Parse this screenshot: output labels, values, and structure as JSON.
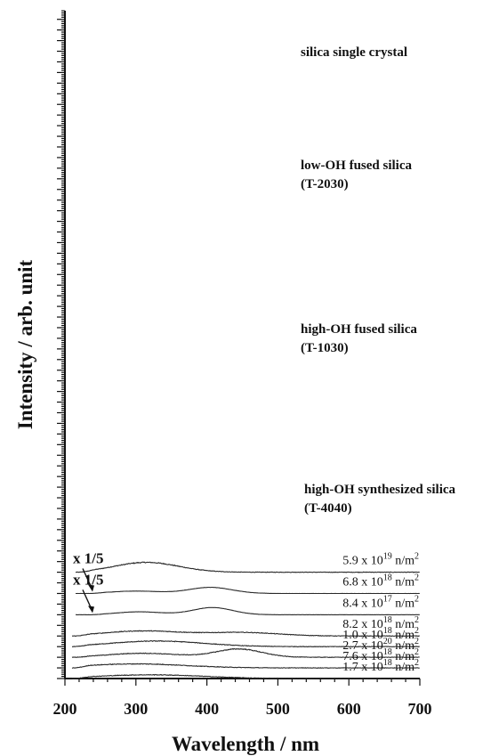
{
  "chart_data": {
    "type": "line",
    "xlabel": "Wavelength / nm",
    "ylabel": "Intensity / arb. unit",
    "xlim": [
      200,
      700
    ],
    "x_ticks": [
      200,
      300,
      400,
      500,
      600,
      700
    ],
    "x_tick_labels": [
      "200",
      "300",
      "400",
      "500",
      "600",
      "700"
    ],
    "y_axis_values_shown": false,
    "grid": false,
    "colors": {
      "line": "#2a2a2a",
      "axis": "#111111"
    },
    "groups": [
      {
        "label_line1": "silica single crystal",
        "label_line2": ""
      },
      {
        "label_line1": "low-OH fused silica",
        "label_line2": "(T-2030)"
      },
      {
        "label_line1": "high-OH fused silica",
        "label_line2": "(T-1030)"
      },
      {
        "label_line1": "high-OH synthesized silica",
        "label_line2": "(T-4040)"
      }
    ],
    "series": [
      {
        "fluence_mantissa": "5.9 x 10",
        "fluence_exponent": "19",
        "fluence_unit": " n/m",
        "fluence_unit_exp": "2",
        "scale_note": "",
        "x_start": 215,
        "x_end": 700,
        "offset": 10,
        "peaks": [
          {
            "center": 315,
            "height": 18.5,
            "width": 45
          }
        ]
      },
      {
        "fluence_mantissa": "6.8 x 10",
        "fluence_exponent": "18",
        "fluence_unit": " n/m",
        "fluence_unit_exp": "2",
        "scale_note": "x 1/5",
        "x_start": 215,
        "x_end": 700,
        "offset": 8,
        "peaks": [
          {
            "center": 300,
            "height": 4.5,
            "width": 35
          },
          {
            "center": 405,
            "height": 11.5,
            "width": 30
          }
        ]
      },
      {
        "fluence_mantissa": "8.4 x 10",
        "fluence_exponent": "17",
        "fluence_unit": " n/m",
        "fluence_unit_exp": "2",
        "scale_note": "x 1/5",
        "x_start": 215,
        "x_end": 700,
        "offset": 6,
        "peaks": [
          {
            "center": 305,
            "height": 5.5,
            "width": 32
          },
          {
            "center": 408,
            "height": 13.5,
            "width": 28
          }
        ]
      },
      {
        "fluence_mantissa": "8.2 x 10",
        "fluence_exponent": "18",
        "fluence_unit": " n/m",
        "fluence_unit_exp": "2",
        "scale_note": "",
        "x_start": 210,
        "x_end": 700,
        "offset": 4,
        "peaks": [
          {
            "center": 310,
            "height": 9.5,
            "width": 55
          },
          {
            "center": 450,
            "height": 6.5,
            "width": 50
          }
        ]
      },
      {
        "fluence_mantissa": "1.0 x 10",
        "fluence_exponent": "18",
        "fluence_unit": " n/m",
        "fluence_unit_exp": "2",
        "scale_note": "",
        "x_start": 210,
        "x_end": 700,
        "offset": 3,
        "peaks": [
          {
            "center": 330,
            "height": 10.5,
            "width": 65
          }
        ]
      },
      {
        "fluence_mantissa": "2.7 x 10",
        "fluence_exponent": "20",
        "fluence_unit": " n/m",
        "fluence_unit_exp": "2",
        "scale_note": "",
        "x_start": 210,
        "x_end": 700,
        "offset": 2,
        "peaks": [
          {
            "center": 310,
            "height": 7.5,
            "width": 50
          },
          {
            "center": 445,
            "height": 15.5,
            "width": 32
          }
        ]
      },
      {
        "fluence_mantissa": "7.6 x 10",
        "fluence_exponent": "18",
        "fluence_unit": " n/m",
        "fluence_unit_exp": "2",
        "scale_note": "",
        "x_start": 210,
        "x_end": 700,
        "offset": 1,
        "peaks": [
          {
            "center": 300,
            "height": 7.5,
            "width": 70
          }
        ]
      },
      {
        "fluence_mantissa": "1.7 x 10",
        "fluence_exponent": "18",
        "fluence_unit": " n/m",
        "fluence_unit_exp": "2",
        "scale_note": "",
        "x_start": 210,
        "x_end": 700,
        "offset": 0,
        "peaks": [
          {
            "center": 320,
            "height": 7.0,
            "width": 75
          }
        ]
      }
    ]
  }
}
